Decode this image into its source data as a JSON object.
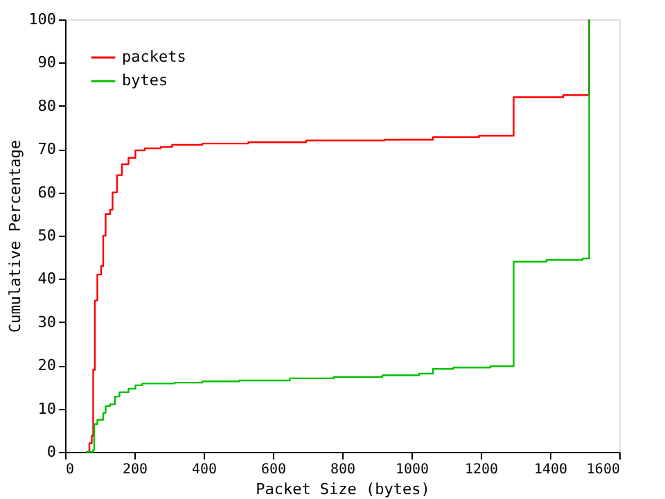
{
  "chart_data": {
    "type": "step",
    "xlabel": "Packet Size (bytes)",
    "ylabel": "Cumulative Percentage",
    "xlim": [
      0,
      1600
    ],
    "ylim": [
      0,
      100
    ],
    "xticks": [
      0,
      200,
      400,
      600,
      800,
      1000,
      1200,
      1400,
      1600
    ],
    "yticks": [
      0,
      10,
      20,
      30,
      40,
      50,
      60,
      70,
      80,
      90,
      100
    ],
    "grid": false,
    "legend": "top left",
    "line_style": "solid",
    "marker": "none",
    "series": [
      {
        "name": "packets",
        "color": "#ff0000",
        "x": [
          61,
          70,
          77,
          81,
          86,
          93,
          104,
          110,
          117,
          130,
          137,
          150,
          164,
          183,
          203,
          230,
          276,
          309,
          396,
          529,
          696,
          922,
          1062,
          1195,
          1295,
          1438,
          1513
        ],
        "values": [
          0,
          2,
          3.7,
          19,
          35,
          41,
          43,
          50,
          55,
          56,
          60,
          64,
          66.5,
          68,
          69.7,
          70.2,
          70.5,
          71,
          71.3,
          71.6,
          72,
          72.2,
          72.8,
          73.1,
          82,
          82.5,
          100
        ]
      },
      {
        "name": "bytes",
        "color": "#00c000",
        "x": [
          61,
          81,
          84,
          93,
          110,
          117,
          130,
          144,
          157,
          183,
          203,
          223,
          316,
          396,
          503,
          649,
          776,
          916,
          1022,
          1062,
          1121,
          1228,
          1295,
          1390,
          1494,
          1513
        ],
        "values": [
          0,
          0.5,
          6.4,
          7.4,
          9,
          10.6,
          11,
          12.8,
          13.8,
          14.6,
          15.4,
          15.8,
          16,
          16.3,
          16.5,
          17,
          17.3,
          17.7,
          18.1,
          19.2,
          19.5,
          19.8,
          44,
          44.4,
          44.7,
          100
        ]
      }
    ]
  }
}
